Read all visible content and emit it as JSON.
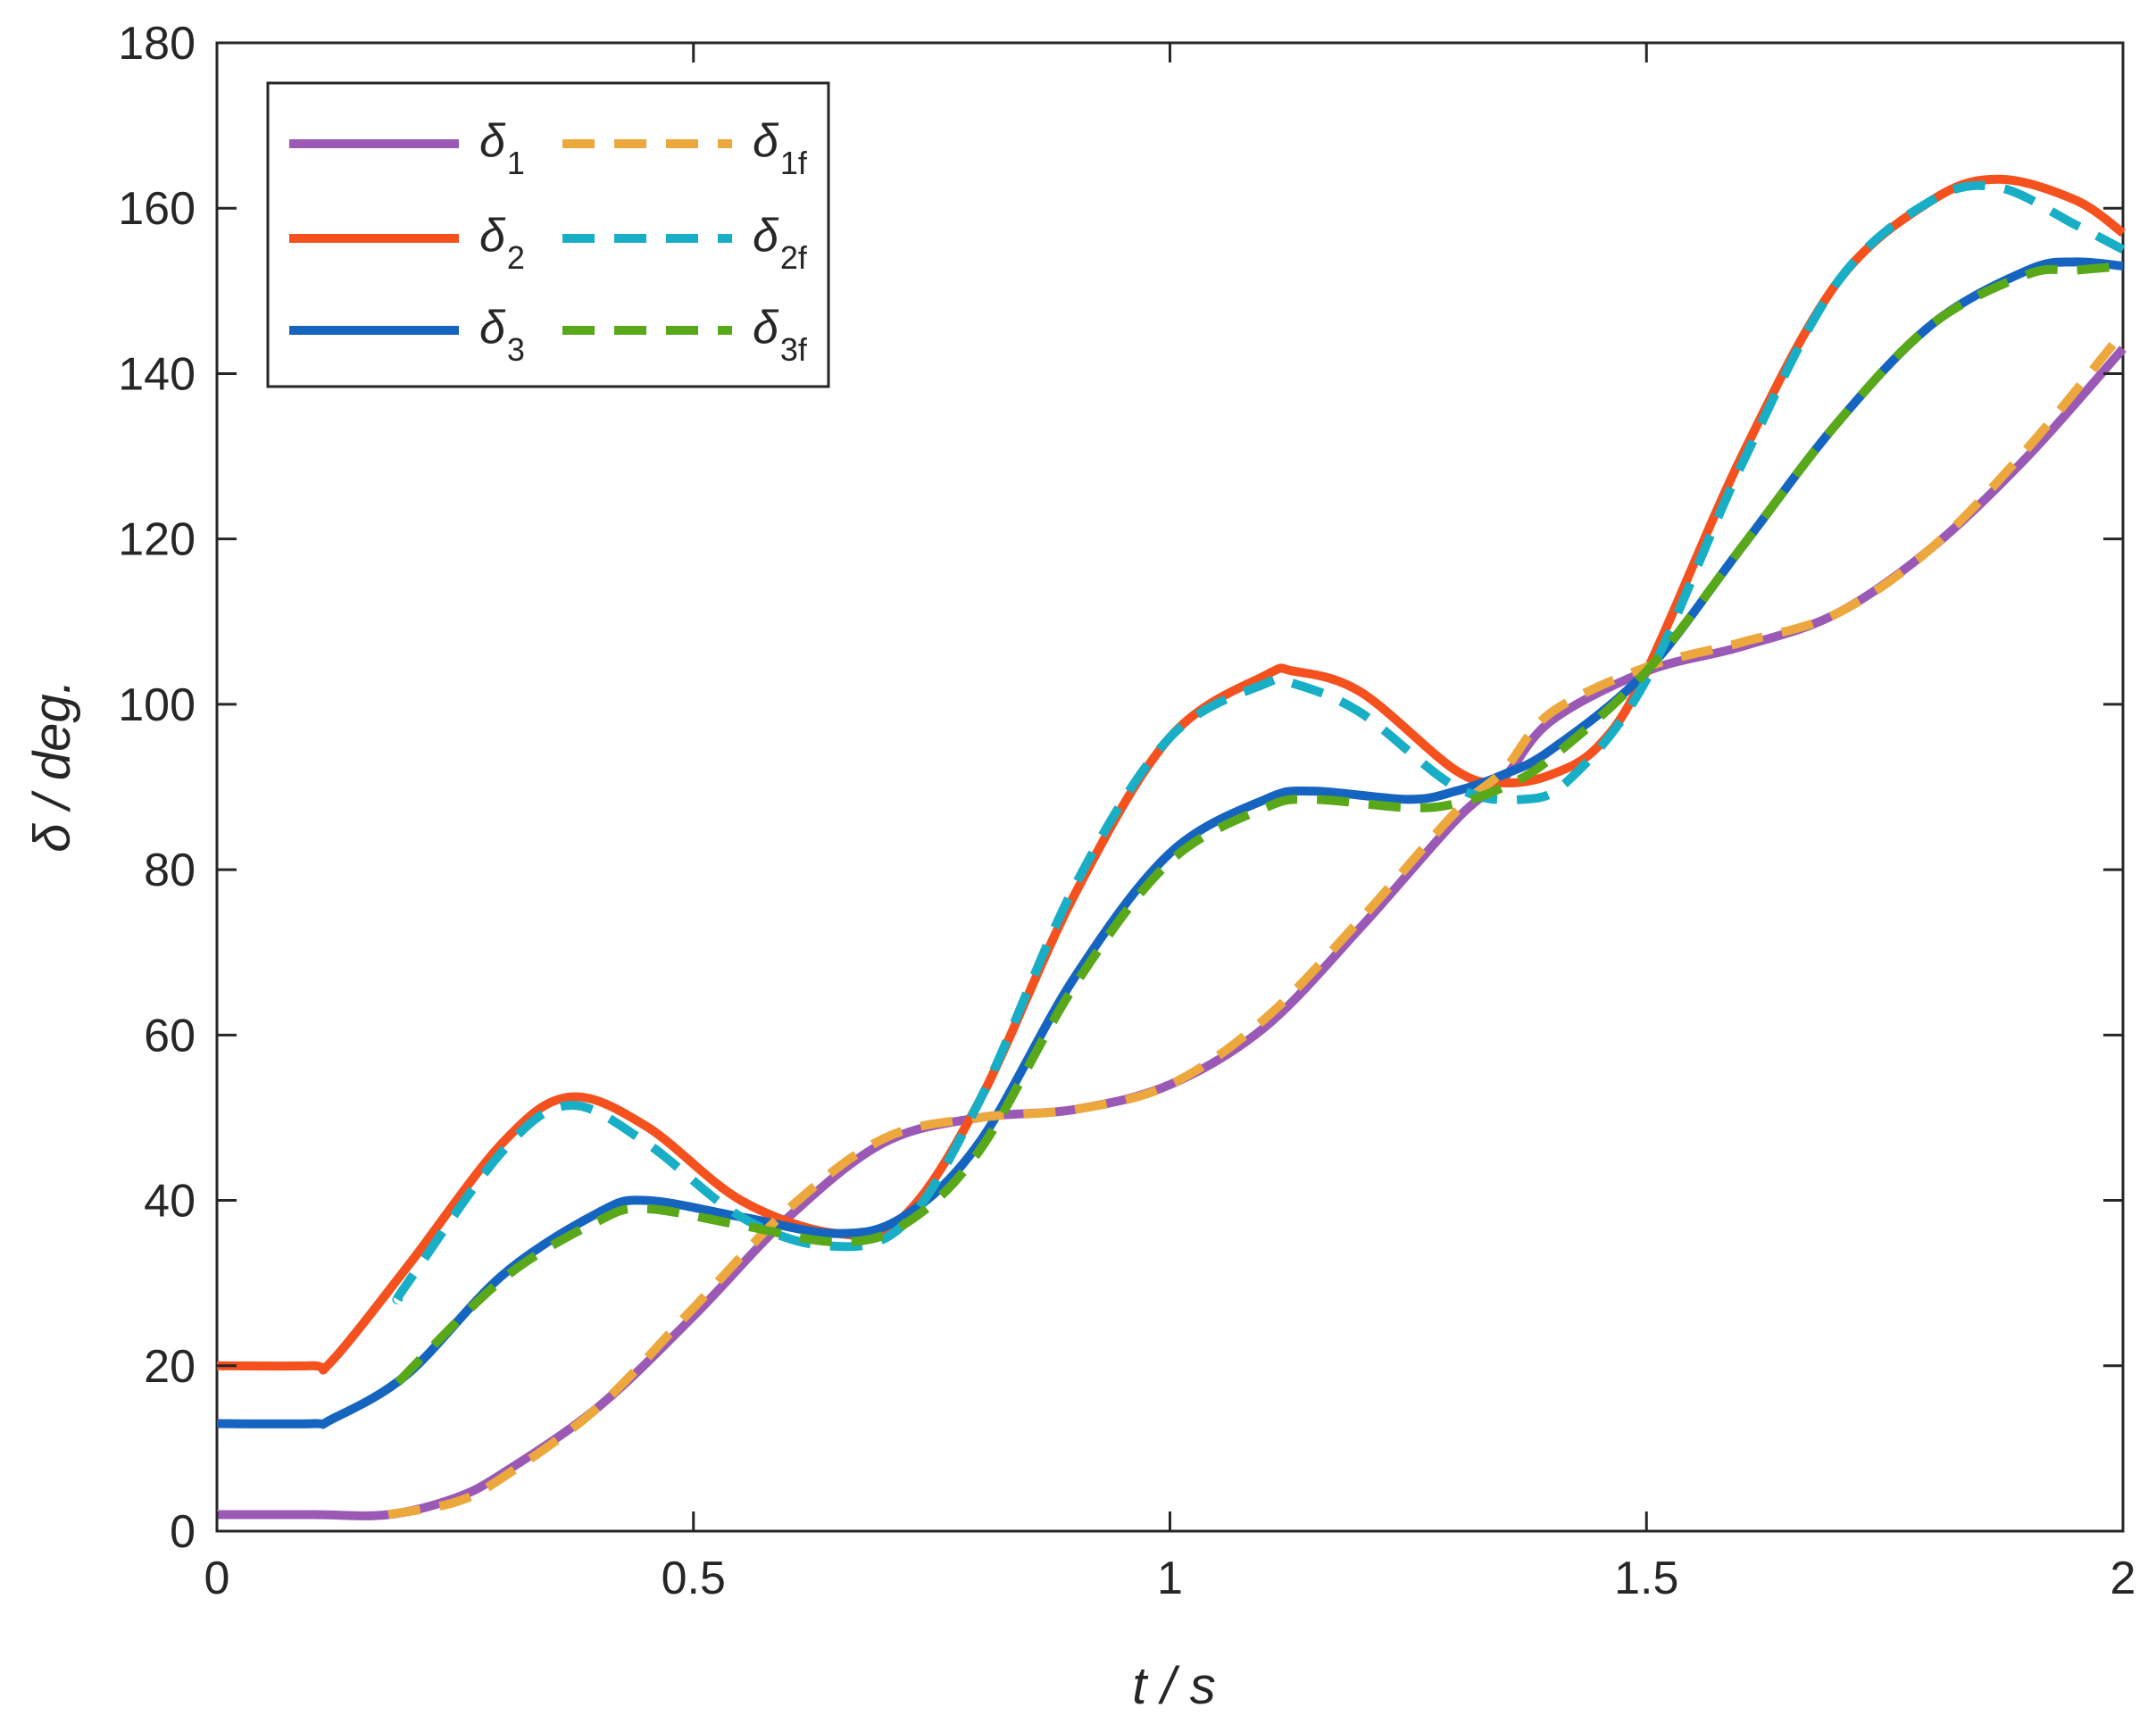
{
  "chart_data": {
    "type": "line",
    "xlabel": "t / s",
    "ylabel": "δ / deg.",
    "xlim": [
      0,
      2
    ],
    "ylim": [
      0,
      180
    ],
    "x_ticks": [
      0,
      0.5,
      1,
      1.5,
      2
    ],
    "x_tick_labels": [
      "0",
      "0.5",
      "1",
      "1.5",
      "2"
    ],
    "y_ticks": [
      0,
      20,
      40,
      60,
      80,
      100,
      120,
      140,
      160,
      180
    ],
    "y_tick_labels": [
      "0",
      "20",
      "40",
      "60",
      "80",
      "100",
      "120",
      "140",
      "160",
      "180"
    ],
    "grid": false,
    "legend_position": "top-left",
    "series": [
      {
        "name": "δ1",
        "base": "δ",
        "sub": "1",
        "color": "#9B59B6",
        "style": "solid",
        "x": [
          0,
          0.1,
          0.18,
          0.25,
          0.3,
          0.4,
          0.5,
          0.6,
          0.7,
          0.8,
          0.9,
          1.0,
          1.1,
          1.2,
          1.3,
          1.35,
          1.4,
          1.5,
          1.6,
          1.7,
          1.8,
          1.9,
          2.0
        ],
        "y": [
          2,
          2,
          2,
          4,
          7,
          15,
          26,
          38,
          47,
          50,
          51,
          54,
          61,
          73,
          86,
          91,
          98,
          104,
          107,
          111,
          119,
          130,
          143
        ]
      },
      {
        "name": "δ1f",
        "base": "δ",
        "sub": "1f",
        "color": "#EDA83D",
        "style": "dashed",
        "x": [
          0.18,
          0.25,
          0.3,
          0.4,
          0.5,
          0.6,
          0.7,
          0.8,
          0.9,
          1.0,
          1.1,
          1.2,
          1.3,
          1.35,
          1.4,
          1.5,
          1.6,
          1.7,
          1.8,
          1.9,
          2.0
        ],
        "y": [
          2,
          3.5,
          6.5,
          15,
          27,
          39,
          47.5,
          50,
          51,
          54,
          62,
          74,
          87,
          92,
          99,
          104.5,
          107.5,
          111,
          119,
          131,
          145
        ]
      },
      {
        "name": "δ2",
        "base": "δ",
        "sub": "2",
        "color": "#F4511E",
        "style": "solid",
        "x": [
          0,
          0.1,
          0.12,
          0.2,
          0.3,
          0.37,
          0.45,
          0.55,
          0.65,
          0.72,
          0.8,
          0.9,
          1.0,
          1.1,
          1.13,
          1.2,
          1.3,
          1.35,
          1.4,
          1.45,
          1.5,
          1.6,
          1.7,
          1.8,
          1.87,
          1.95,
          2.0
        ],
        "y": [
          20,
          20,
          20.5,
          32,
          47,
          52.5,
          49,
          40,
          36,
          38,
          52,
          77,
          96,
          103.5,
          104,
          101.5,
          92,
          90.5,
          91.5,
          95,
          104,
          130,
          151,
          161,
          163.5,
          161,
          157
        ]
      },
      {
        "name": "δ2f",
        "base": "δ",
        "sub": "2f",
        "color": "#18AEC5",
        "style": "dashed",
        "x": [
          0.19,
          0.2,
          0.3,
          0.37,
          0.45,
          0.55,
          0.64,
          0.72,
          0.8,
          0.9,
          1.0,
          1.1,
          1.13,
          1.2,
          1.3,
          1.37,
          1.42,
          1.5,
          1.6,
          1.7,
          1.8,
          1.87,
          1.95,
          2.0
        ],
        "y": [
          28,
          30,
          46,
          51.5,
          47,
          38,
          34.5,
          37,
          52,
          78,
          96,
          102.5,
          102.5,
          99,
          90,
          88.5,
          91,
          103,
          129,
          151,
          161,
          162.5,
          158,
          155
        ]
      },
      {
        "name": "δ3",
        "base": "δ",
        "sub": "3",
        "color": "#1565C0",
        "style": "solid",
        "x": [
          0,
          0.1,
          0.12,
          0.2,
          0.3,
          0.4,
          0.45,
          0.55,
          0.65,
          0.72,
          0.8,
          0.9,
          1.0,
          1.1,
          1.15,
          1.25,
          1.3,
          1.35,
          1.4,
          1.5,
          1.6,
          1.7,
          1.8,
          1.9,
          1.95,
          2.0
        ],
        "y": [
          13,
          13,
          13.5,
          19,
          31,
          38.5,
          40,
          38,
          36,
          38,
          47,
          67,
          82,
          88.5,
          89.5,
          88.5,
          89.5,
          91.5,
          94.5,
          104,
          119,
          134,
          146,
          152.5,
          153.5,
          153
        ]
      },
      {
        "name": "δ3f",
        "base": "δ",
        "sub": "3f",
        "color": "#58A81A",
        "style": "dashed",
        "x": [
          0.19,
          0.3,
          0.4,
          0.45,
          0.55,
          0.65,
          0.72,
          0.8,
          0.9,
          1.0,
          1.1,
          1.15,
          1.25,
          1.3,
          1.35,
          1.4,
          1.5,
          1.6,
          1.7,
          1.8,
          1.9,
          1.95,
          2.0
        ],
        "y": [
          18,
          30.5,
          37.5,
          39,
          37,
          35,
          37,
          46,
          66,
          81,
          87.5,
          88.5,
          87.5,
          88,
          90,
          93.5,
          104,
          119,
          134,
          146,
          152,
          152.5,
          153
        ]
      }
    ]
  }
}
